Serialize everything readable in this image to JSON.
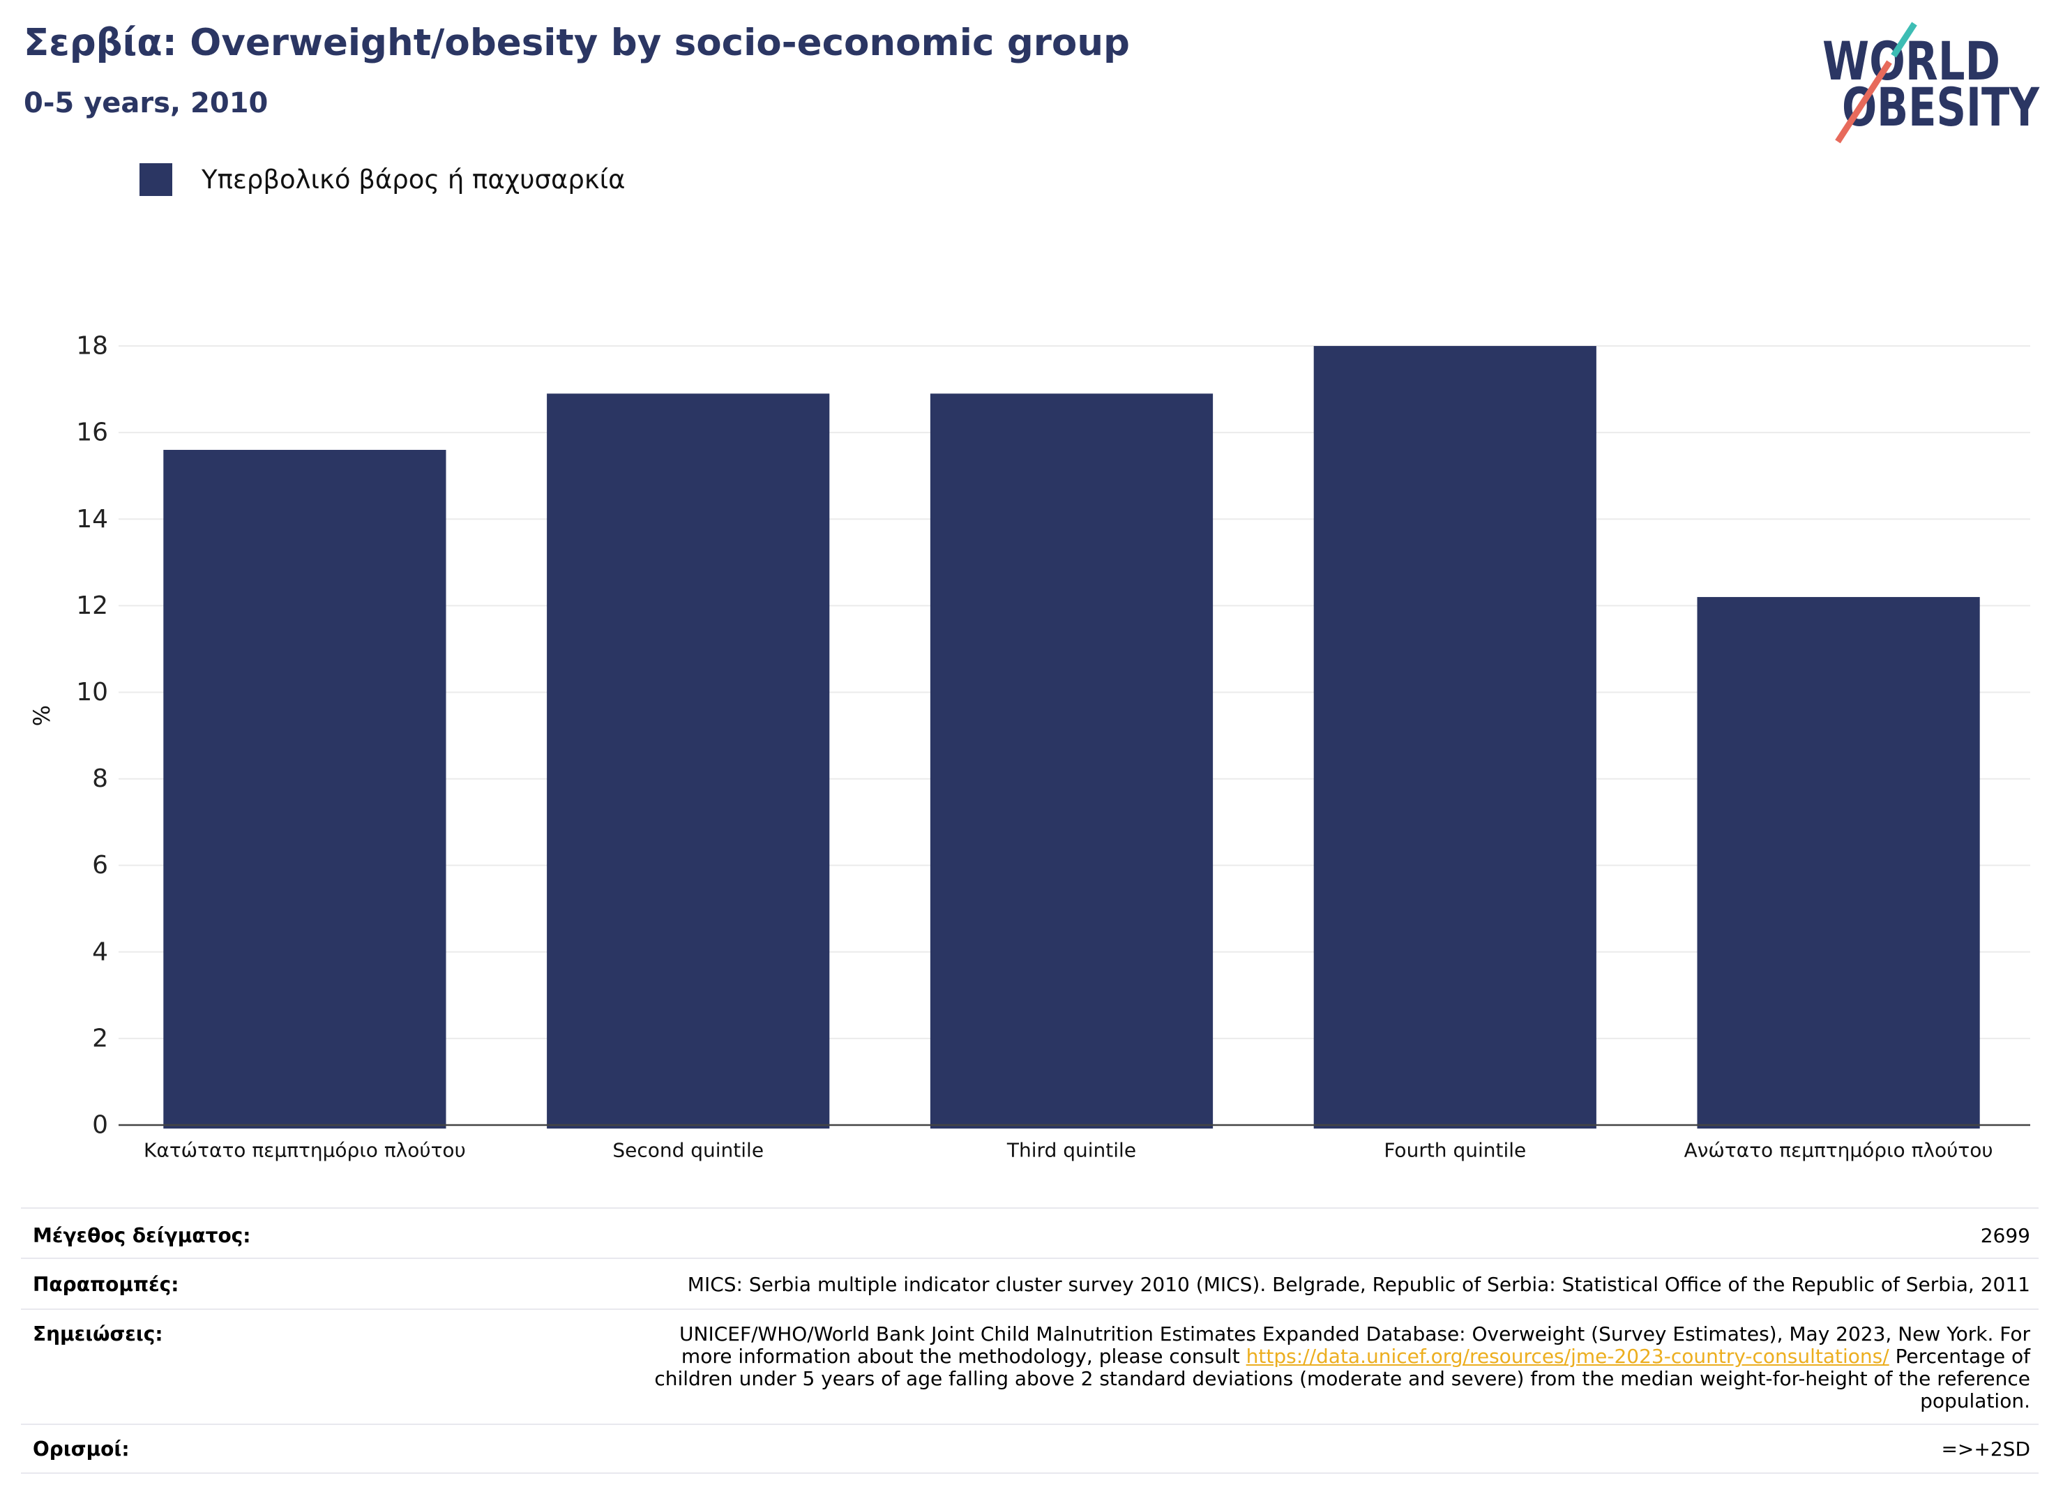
{
  "colors": {
    "brand": "#2b3663",
    "logo_teal": "#3dbdb4",
    "logo_coral": "#e76a5b",
    "link": "#ecae1f",
    "gridline": "#ebebeb",
    "axis_line": "#444444"
  },
  "logo": {
    "line_1": "WORLD",
    "line_2": "OBESITY"
  },
  "chart_data": {
    "type": "bar",
    "title": "Σερβία: Overweight/obesity by socio-economic group",
    "subtitle": "0-5 years, 2010",
    "categories": [
      "Κατώτατο πεμπτημόριο πλούτου",
      "Second quintile",
      "Third quintile",
      "Fourth quintile",
      "Ανώτατο πεμπτημόριο πλούτου"
    ],
    "series": [
      {
        "name": "Υπερβολικό βάρος ή παχυσαρκία",
        "values": [
          15.6,
          16.9,
          16.9,
          18.0,
          12.2
        ],
        "color": "#2b3663"
      }
    ],
    "ylabel": "%",
    "ylim": [
      0,
      19
    ],
    "yticks": [
      0,
      2,
      4,
      6,
      8,
      10,
      12,
      14,
      16,
      18
    ],
    "grid": true,
    "legend_position": "top-left"
  },
  "details": {
    "sample_size": {
      "label": "Μέγεθος δείγματος:",
      "value": "2699"
    },
    "references": {
      "label": "Παραπομπές:",
      "value": "MICS: Serbia multiple indicator cluster survey 2010 (MICS). Belgrade, Republic of Serbia: Statistical Office of the Republic of Serbia, 2011"
    },
    "notes": {
      "label": "Σημειώσεις:",
      "line_1": "UNICEF/WHO/World Bank Joint Child Malnutrition Estimates Expanded Database: Overweight (Survey Estimates), May 2023, New York. For",
      "line_2_before_link": "more information about the methodology, please consult",
      "link": "https://data.unicef.org/resources/jme-2023-country-consultations/",
      "line_2_after_link": "Percentage of",
      "line_3": "children under 5 years of age falling above 2 standard deviations (moderate and severe) from the median weight-for-height of the reference",
      "line_4": "population."
    },
    "definitions": {
      "label": "Ορισμοί:",
      "value": "=>+2SD"
    }
  }
}
